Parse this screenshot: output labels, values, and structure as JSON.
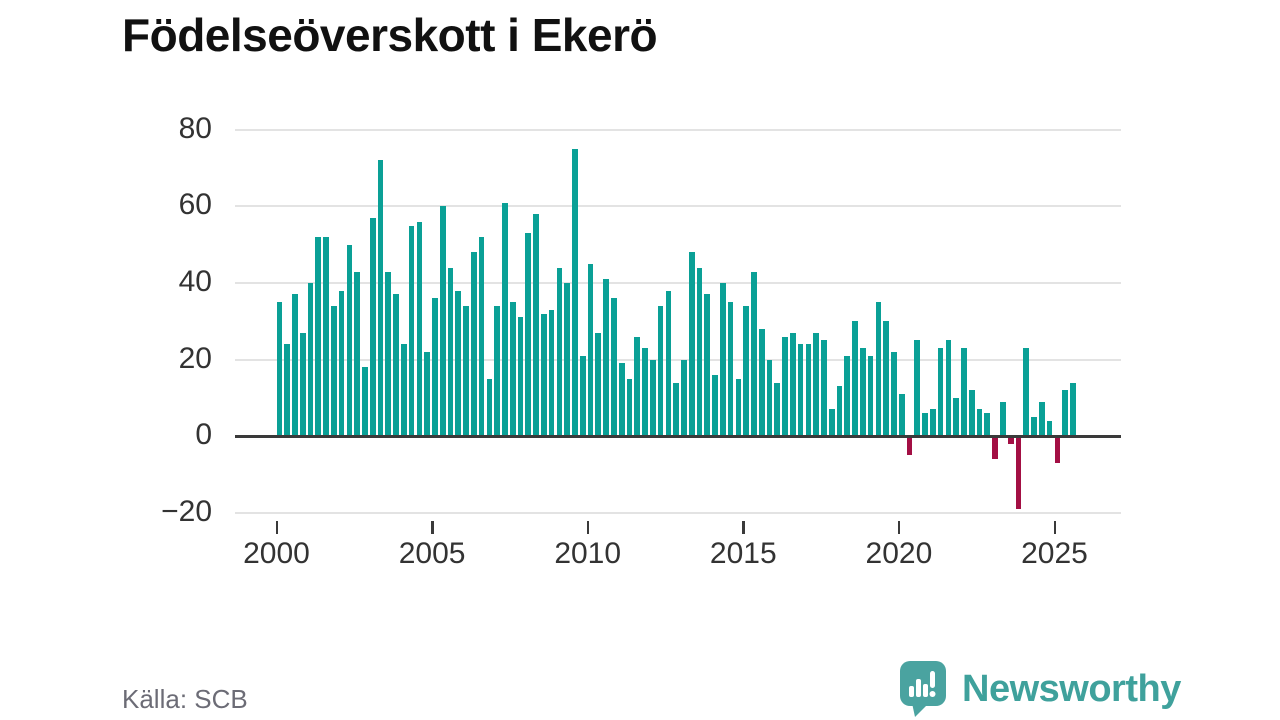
{
  "title": "Födelseöverskott i Ekerö",
  "source": "Källa: SCB",
  "logo": {
    "text": "Newsworthy",
    "icon": "newsworthy-speech-bubble-chart-icon",
    "color": "#3fa19c"
  },
  "chart_data": {
    "type": "bar",
    "title": "Födelseöverskott i Ekerö",
    "frequency": "quarterly",
    "start_period": "2000-Q1",
    "end_period": "2025-Q3",
    "xlabel": "",
    "ylabel": "",
    "ylim": [
      -20,
      80
    ],
    "grid": "horizontal",
    "legend": "none",
    "x_tick_labels": [
      "2000",
      "2005",
      "2010",
      "2015",
      "2020",
      "2025"
    ],
    "x_tick_years": [
      2000,
      2005,
      2010,
      2015,
      2020,
      2025
    ],
    "y_ticks": [
      80,
      60,
      40,
      20,
      0,
      -20
    ],
    "y_tick_labels": [
      "80",
      "60",
      "40",
      "20",
      "0",
      "−20"
    ],
    "colors": {
      "positive": "#0aa096",
      "negative": "#a30f44",
      "gridline": "#e3e3e3",
      "axis": "#3a3a3a"
    },
    "series": [
      {
        "name": "Födelseöverskott",
        "values": [
          35,
          24,
          37,
          27,
          40,
          52,
          52,
          34,
          38,
          50,
          43,
          18,
          57,
          72,
          43,
          37,
          24,
          55,
          56,
          22,
          36,
          60,
          44,
          38,
          34,
          48,
          52,
          15,
          34,
          61,
          35,
          31,
          53,
          58,
          32,
          33,
          44,
          40,
          75,
          21,
          45,
          27,
          41,
          36,
          19,
          15,
          26,
          23,
          20,
          34,
          38,
          14,
          20,
          48,
          44,
          37,
          16,
          40,
          35,
          15,
          34,
          43,
          28,
          20,
          14,
          26,
          27,
          24,
          24,
          27,
          25,
          7,
          13,
          21,
          30,
          23,
          21,
          35,
          30,
          22,
          11,
          -5,
          25,
          6,
          7,
          23,
          25,
          10,
          23,
          12,
          7,
          6,
          -6,
          9,
          -2,
          -19,
          23,
          5,
          9,
          4,
          -7,
          12,
          14
        ]
      }
    ]
  }
}
